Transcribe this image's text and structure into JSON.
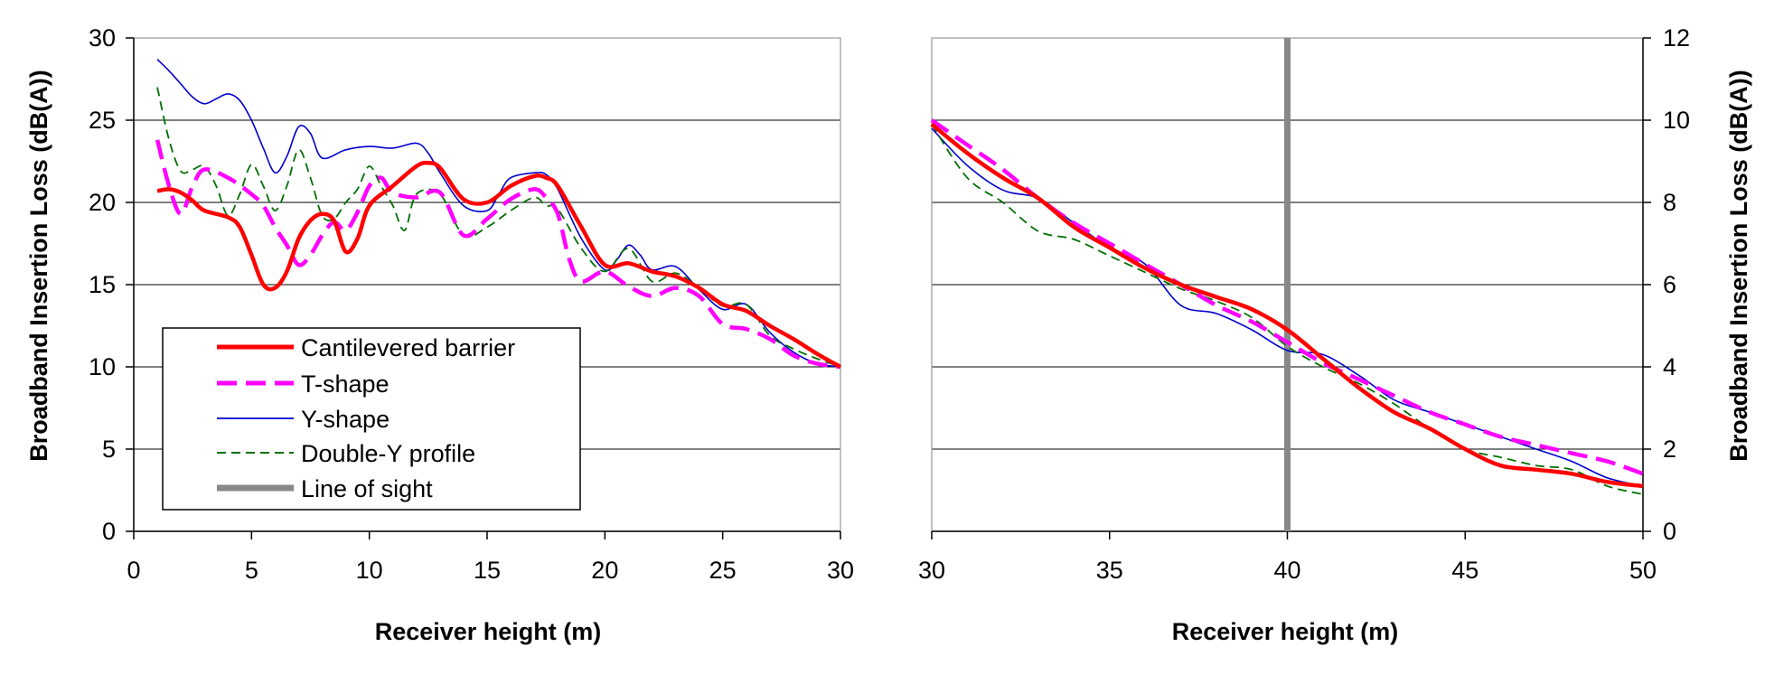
{
  "chart_data": [
    {
      "type": "line",
      "title": "",
      "xlabel": "Receiver height (m)",
      "ylabel": "Broadband Insertion Loss (dB(A))",
      "xlim": [
        0,
        30
      ],
      "ylim": [
        0,
        30
      ],
      "xticks": [
        0,
        5,
        10,
        15,
        20,
        25,
        30
      ],
      "yticks": [
        0,
        5,
        10,
        15,
        20,
        25,
        30
      ],
      "grid": "horizontal",
      "legend": {
        "placement": "bottom-left",
        "entries": [
          "Cantilevered barrier",
          "T-shape",
          "Y-shape",
          "Double-Y profile",
          "Line of sight"
        ]
      },
      "series": [
        {
          "name": "Cantilevered barrier",
          "color": "#ff0000",
          "x": [
            1,
            1.5,
            2,
            2.5,
            3,
            4,
            4.5,
            5,
            5.5,
            6,
            6.5,
            7,
            7.5,
            8,
            8.5,
            9,
            9.5,
            10,
            11,
            12,
            12.5,
            13,
            14,
            15,
            16,
            17,
            17.5,
            18,
            19,
            20,
            21,
            22,
            23,
            24,
            25,
            26,
            27,
            28,
            29,
            30
          ],
          "y": [
            20.7,
            20.8,
            20.6,
            20.1,
            19.5,
            19.1,
            18.5,
            16.8,
            15.0,
            14.8,
            15.8,
            17.8,
            18.9,
            19.3,
            18.9,
            17.0,
            17.8,
            19.8,
            21.0,
            22.2,
            22.4,
            22.1,
            20.2,
            20.0,
            21.0,
            21.6,
            21.5,
            21.0,
            18.5,
            16.2,
            16.3,
            15.8,
            15.5,
            14.8,
            13.8,
            13.4,
            12.5,
            11.7,
            10.8,
            10.0
          ]
        },
        {
          "name": "T-shape",
          "color": "#ff00ff",
          "x": [
            1,
            1.5,
            2,
            2.5,
            3,
            4,
            5,
            5.5,
            6,
            6.5,
            7,
            7.5,
            8,
            8.5,
            9,
            9.5,
            10,
            10.5,
            11,
            12,
            13,
            14,
            15,
            16,
            17,
            17.5,
            18,
            18.5,
            19,
            20,
            21,
            22,
            23,
            24,
            25,
            26,
            27,
            28,
            29,
            30
          ],
          "y": [
            23.8,
            21.0,
            19.3,
            21.0,
            22.0,
            21.5,
            20.5,
            19.8,
            18.5,
            17.4,
            16.2,
            16.8,
            18.0,
            18.8,
            18.3,
            19.4,
            21.0,
            21.5,
            20.6,
            20.3,
            20.6,
            18.0,
            19.0,
            20.2,
            20.8,
            20.3,
            19.3,
            16.5,
            15.2,
            15.8,
            14.9,
            14.3,
            14.8,
            14.3,
            12.6,
            12.3,
            11.7,
            10.7,
            10.2,
            10.0
          ]
        },
        {
          "name": "Y-shape",
          "color": "#0000cc",
          "x": [
            1,
            1.5,
            2,
            2.5,
            3,
            3.5,
            4,
            4.5,
            5,
            5.5,
            6,
            6.5,
            7,
            7.5,
            8,
            9,
            10,
            11,
            12,
            12.5,
            13,
            14,
            15,
            15.5,
            16,
            17,
            17.5,
            18,
            19,
            20,
            20.5,
            21,
            21.5,
            22,
            23,
            24,
            25,
            26,
            27,
            28,
            29,
            30
          ],
          "y": [
            28.7,
            28.0,
            27.2,
            26.4,
            26.0,
            26.3,
            26.6,
            26.2,
            25.0,
            23.3,
            21.8,
            22.8,
            24.6,
            24.2,
            22.7,
            23.2,
            23.4,
            23.3,
            23.6,
            23.0,
            21.8,
            19.8,
            19.5,
            20.5,
            21.5,
            21.8,
            21.7,
            20.8,
            17.8,
            15.9,
            16.5,
            17.4,
            16.8,
            15.9,
            16.1,
            14.7,
            13.5,
            13.8,
            12.1,
            10.9,
            10.2,
            10.0
          ]
        },
        {
          "name": "Double-Y profile",
          "color": "#007000",
          "x": [
            1,
            1.5,
            2,
            2.5,
            3,
            3.5,
            4,
            4.5,
            5,
            5.5,
            6,
            6.5,
            7,
            7.5,
            8,
            8.5,
            9,
            9.5,
            10,
            10.5,
            11,
            11.5,
            12,
            13,
            14,
            15,
            16,
            17,
            17.5,
            18,
            19,
            20,
            21,
            22,
            23,
            24,
            25,
            26,
            27,
            28,
            29,
            30
          ],
          "y": [
            27.0,
            23.8,
            21.9,
            22.0,
            22.2,
            21.0,
            19.2,
            20.5,
            22.3,
            21.0,
            19.5,
            21.0,
            23.2,
            21.5,
            19.2,
            19.0,
            20.0,
            20.8,
            22.2,
            21.0,
            19.8,
            18.3,
            20.5,
            20.5,
            18.0,
            18.5,
            19.5,
            20.3,
            19.8,
            19.6,
            17.2,
            15.8,
            17.2,
            15.2,
            15.7,
            14.8,
            13.7,
            13.8,
            11.9,
            11.1,
            10.5,
            10.0
          ]
        },
        {
          "name": "Line of sight",
          "color": "#888888",
          "x": [],
          "y": []
        }
      ]
    },
    {
      "type": "line",
      "title": "",
      "xlabel": "Receiver height (m)",
      "ylabel": "Broadband Insertion Loss (dB(A))",
      "yaxis_position": "right",
      "xlim": [
        30,
        50
      ],
      "ylim": [
        0,
        12
      ],
      "xticks": [
        30,
        35,
        40,
        45,
        50
      ],
      "yticks": [
        0,
        2,
        4,
        6,
        8,
        10,
        12
      ],
      "grid": "horizontal",
      "line_of_sight_x": 40,
      "series": [
        {
          "name": "Cantilevered barrier",
          "color": "#ff0000",
          "x": [
            30,
            31,
            32,
            33,
            34,
            35,
            36,
            37,
            38,
            39,
            40,
            41,
            42,
            43,
            44,
            45,
            46,
            47,
            48,
            49,
            50
          ],
          "y": [
            9.9,
            9.2,
            8.6,
            8.1,
            7.4,
            6.9,
            6.4,
            6.0,
            5.7,
            5.4,
            4.9,
            4.2,
            3.5,
            2.9,
            2.5,
            2.0,
            1.6,
            1.5,
            1.4,
            1.2,
            1.1
          ]
        },
        {
          "name": "T-shape",
          "color": "#ff00ff",
          "x": [
            30,
            31,
            32,
            33,
            34,
            35,
            36,
            37,
            38,
            39,
            40,
            41,
            42,
            43,
            44,
            45,
            46,
            47,
            48,
            49,
            50
          ],
          "y": [
            10.0,
            9.4,
            8.8,
            8.1,
            7.5,
            7.0,
            6.5,
            6.0,
            5.5,
            5.1,
            4.6,
            4.1,
            3.7,
            3.3,
            2.9,
            2.6,
            2.3,
            2.1,
            1.9,
            1.7,
            1.4
          ]
        },
        {
          "name": "Y-shape",
          "color": "#0000cc",
          "x": [
            30,
            31,
            32,
            33,
            34,
            35,
            36,
            37,
            38,
            39,
            40,
            41,
            42,
            43,
            44,
            45,
            46,
            47,
            48,
            49,
            50
          ],
          "y": [
            9.8,
            8.9,
            8.3,
            8.1,
            7.5,
            6.9,
            6.5,
            5.5,
            5.3,
            4.9,
            4.4,
            4.3,
            3.8,
            3.2,
            2.9,
            2.6,
            2.3,
            2.0,
            1.7,
            1.3,
            1.1
          ]
        },
        {
          "name": "Double-Y profile",
          "color": "#007000",
          "x": [
            30,
            31,
            32,
            33,
            34,
            35,
            36,
            37,
            38,
            39,
            40,
            41,
            42,
            43,
            44,
            45,
            46,
            47,
            48,
            49,
            50
          ],
          "y": [
            9.9,
            8.6,
            8.0,
            7.3,
            7.1,
            6.7,
            6.3,
            5.9,
            5.6,
            5.2,
            4.5,
            4.0,
            3.6,
            3.1,
            2.5,
            2.0,
            1.8,
            1.6,
            1.5,
            1.1,
            0.9
          ]
        }
      ]
    }
  ]
}
